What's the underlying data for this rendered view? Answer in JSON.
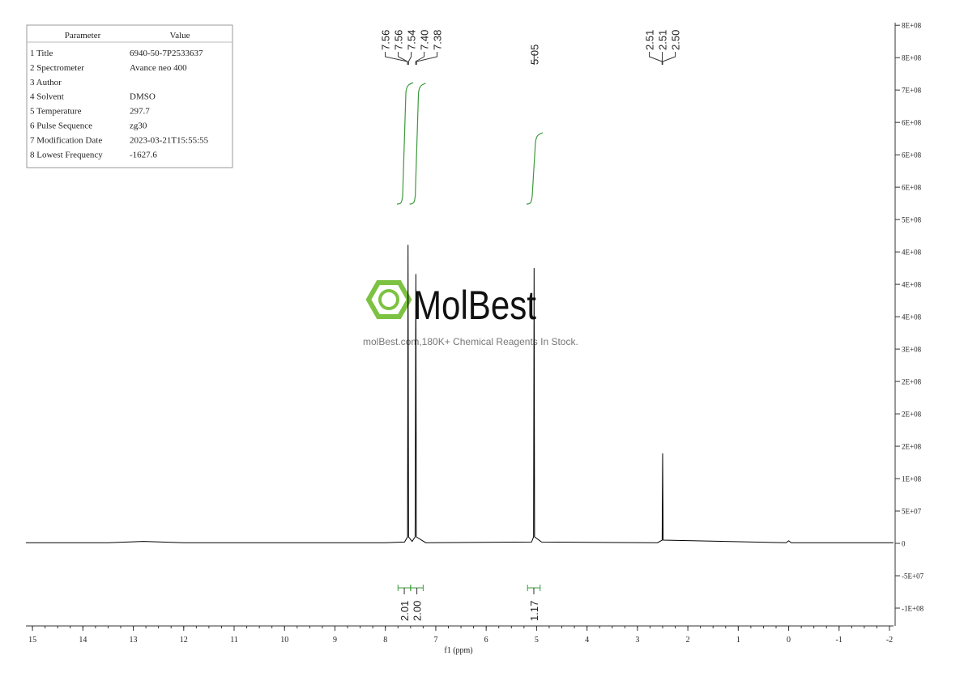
{
  "chart_data": {
    "type": "line",
    "x_label": "f1 (ppm)",
    "x": [
      15.13,
      13.5,
      12.8,
      12.0,
      8.0,
      7.62,
      7.56,
      7.55,
      7.54,
      7.47,
      7.41,
      7.395,
      7.385,
      7.2,
      5.1,
      5.06,
      5.05,
      5.04,
      4.9,
      2.6,
      2.51,
      2.5,
      2.49,
      0.05,
      0.0,
      -0.05,
      -2.08
    ],
    "values": [
      1000000,
      1000000,
      3000000,
      1000000,
      1000000,
      2000000,
      10000000,
      461000000,
      10000000,
      3000000,
      10000000,
      416000000,
      10000000,
      1000000,
      2000000,
      10000000,
      425000000,
      10000000,
      2000000,
      1000000,
      5000000,
      139000000,
      5000000,
      1000000,
      4000000,
      1000000,
      1000000
    ],
    "color": "#000000",
    "xlim": [
      15.13,
      -2.08
    ],
    "xticks": [
      15,
      14,
      13,
      12,
      11,
      10,
      9,
      8,
      7,
      6,
      5,
      4,
      3,
      2,
      1,
      0,
      -1,
      -2
    ],
    "ylim": [
      -127500000,
      804000000
    ],
    "yticks": [
      {
        "value": 800000000,
        "label": "8E+08"
      },
      {
        "value": 750000000,
        "label": "8E+08"
      },
      {
        "value": 700000000,
        "label": "7E+08"
      },
      {
        "value": 650000000,
        "label": "6E+08"
      },
      {
        "value": 600000000,
        "label": "6E+08"
      },
      {
        "value": 550000000,
        "label": "6E+08"
      },
      {
        "value": 500000000,
        "label": "5E+08"
      },
      {
        "value": 450000000,
        "label": "4E+08"
      },
      {
        "value": 400000000,
        "label": "4E+08"
      },
      {
        "value": 350000000,
        "label": "4E+08"
      },
      {
        "value": 300000000,
        "label": "3E+08"
      },
      {
        "value": 250000000,
        "label": "2E+08"
      },
      {
        "value": 200000000,
        "label": "2E+08"
      },
      {
        "value": 150000000,
        "label": "2E+08"
      },
      {
        "value": 100000000,
        "label": "1E+08"
      },
      {
        "value": 50000000,
        "label": "5E+07"
      },
      0,
      {
        "value": -50000000,
        "label": "-5E+07"
      },
      {
        "value": -100000000,
        "label": "-1E+08"
      }
    ],
    "peak_groups": [
      [
        7.56,
        7.56,
        7.54,
        {
          "value": 7.4,
          "label": "7.40"
        },
        7.38
      ],
      [
        5.05
      ],
      [
        2.51,
        2.51,
        {
          "value": 2.5,
          "label": "2.50"
        }
      ]
    ],
    "integral_color": "#3c9a3c",
    "integrals": [
      {
        "value": 2.01,
        "range": [
          7.75,
          7.5
        ]
      },
      {
        "value": 2,
        "label": "2.00",
        "range": [
          7.5,
          7.25
        ]
      },
      {
        "value": 1.17,
        "range": [
          5.18,
          4.93
        ]
      }
    ]
  },
  "parameter_table": {
    "header": [
      "Parameter",
      "Value"
    ],
    "rows": [
      [
        "1 Title",
        "6940-50-7P2533637"
      ],
      [
        "2 Spectrometer",
        "Avance neo 400"
      ],
      [
        "3 Author",
        ""
      ],
      [
        "4 Solvent",
        "DMSO"
      ],
      [
        "5 Temperature",
        "297.7"
      ],
      [
        "6 Pulse Sequence",
        "zg30"
      ],
      [
        "7 Modification Date",
        "2023-03-21T15:55:55"
      ],
      [
        "8 Lowest Frequency",
        "-1627.6"
      ]
    ]
  },
  "watermark": {
    "brand": "MolBest",
    "tagline": "molBest.com,180K+ Chemical Reagents In Stock."
  }
}
